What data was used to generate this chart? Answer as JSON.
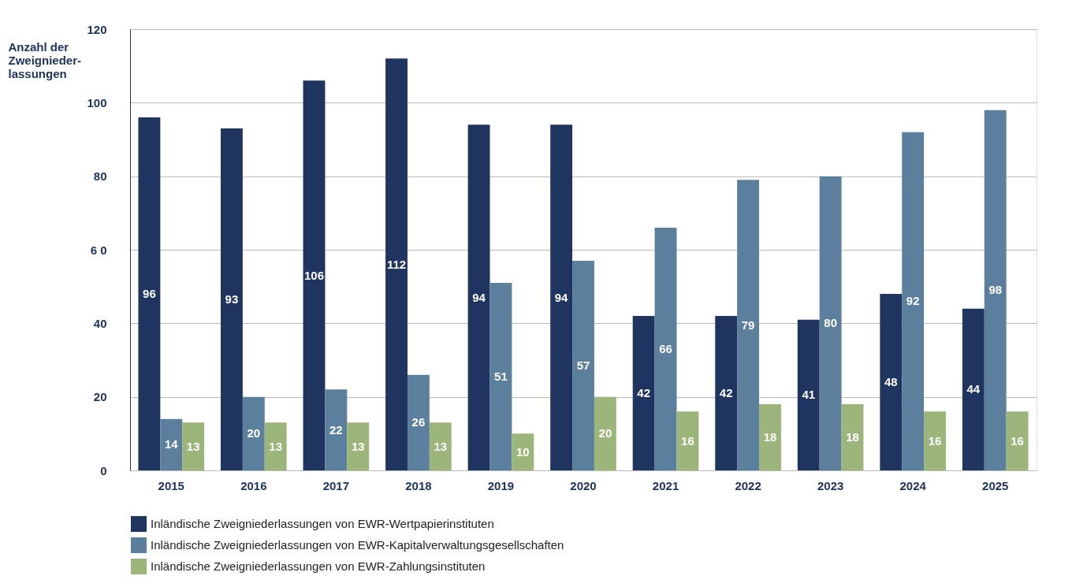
{
  "chart_data": {
    "type": "bar",
    "ylabel": "Anzahl der\nZweignieder-\nlassungen",
    "categories": [
      "2015",
      "2016",
      "2017",
      "2018",
      "2019",
      "2020",
      "2021",
      "2022",
      "2023",
      "2024",
      "2025"
    ],
    "series": [
      {
        "name": "Inländische Zweigniederlassungen von EWR-Wertpapierinstituten",
        "color": "#1f3560",
        "values": [
          96,
          93,
          106,
          112,
          94,
          94,
          42,
          42,
          41,
          48,
          44
        ]
      },
      {
        "name": "Inländische Zweigniederlassungen von EWR-Kapitalverwaltungsgesellschaften",
        "color": "#5b7f9c",
        "values": [
          14,
          20,
          22,
          26,
          51,
          57,
          66,
          79,
          80,
          92,
          98
        ]
      },
      {
        "name": "Inländische Zweigniederlassungen von EWR-Zahlungsinstituten",
        "color": "#9cb57a",
        "values": [
          13,
          13,
          13,
          13,
          10,
          20,
          16,
          18,
          18,
          16,
          16
        ]
      }
    ],
    "ylim": [
      0,
      120
    ],
    "yticks": [
      0,
      20,
      40,
      {
        "value": 60,
        "label": "6 0"
      },
      80,
      100,
      120
    ],
    "grid": "y",
    "legend": "bottom",
    "data_labels": true
  }
}
